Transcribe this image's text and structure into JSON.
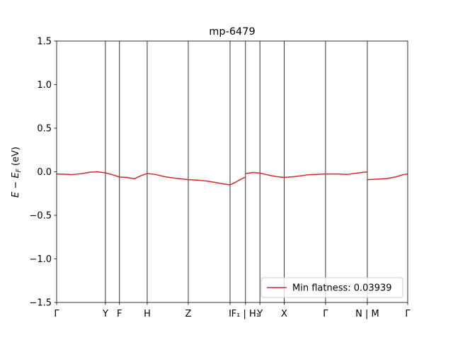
{
  "chart_data": {
    "type": "line",
    "title": "mp-6479",
    "ylabel": "E − E_F (eV)",
    "ylabel_main": "E − E",
    "ylabel_sub": "F",
    "ylabel_unit": " (eV)",
    "xlabel": "",
    "xlim": [
      0,
      1
    ],
    "ylim": [
      -1.5,
      1.5
    ],
    "yticks": [
      {
        "value": -1.5,
        "label": "−1.5"
      },
      {
        "value": -1.0,
        "label": "−1.0"
      },
      {
        "value": -0.5,
        "label": "−0.5"
      },
      {
        "value": 0.0,
        "label": "0.0"
      },
      {
        "value": 0.5,
        "label": "0.5"
      },
      {
        "value": 1.0,
        "label": "1.0"
      },
      {
        "value": 1.5,
        "label": "1.5"
      }
    ],
    "kpoints": [
      {
        "pos": 0.0,
        "label": "Γ"
      },
      {
        "pos": 0.139,
        "label": "Y"
      },
      {
        "pos": 0.179,
        "label": "F"
      },
      {
        "pos": 0.258,
        "label": "H"
      },
      {
        "pos": 0.375,
        "label": "Z"
      },
      {
        "pos": 0.494,
        "label": "I"
      },
      {
        "pos": 0.538,
        "label": "F₁ | H₁"
      },
      {
        "pos": 0.579,
        "label": "Y"
      },
      {
        "pos": 0.648,
        "label": "X"
      },
      {
        "pos": 0.766,
        "label": "Γ"
      },
      {
        "pos": 0.885,
        "label": "N | M"
      },
      {
        "pos": 1.0,
        "label": "Γ"
      }
    ],
    "grid": false,
    "legend_position": "lower-right",
    "series": [
      {
        "name": "Min flatness: 0.03939",
        "color": "#d62728",
        "segments": [
          {
            "x": [
              0.0,
              0.02,
              0.045,
              0.07,
              0.095,
              0.115,
              0.139,
              0.16,
              0.179,
              0.2,
              0.222,
              0.24,
              0.258,
              0.28,
              0.31,
              0.34,
              0.375,
              0.4,
              0.43,
              0.46,
              0.48,
              0.494,
              0.51,
              0.525,
              0.538
            ],
            "y": [
              -0.025,
              -0.028,
              -0.032,
              -0.022,
              -0.005,
              0.0,
              -0.012,
              -0.035,
              -0.06,
              -0.065,
              -0.08,
              -0.045,
              -0.02,
              -0.03,
              -0.058,
              -0.075,
              -0.09,
              -0.095,
              -0.108,
              -0.128,
              -0.142,
              -0.15,
              -0.12,
              -0.085,
              -0.06
            ]
          },
          {
            "x": [
              0.538,
              0.56,
              0.579,
              0.6,
              0.625,
              0.648,
              0.68,
              0.715,
              0.766,
              0.8,
              0.83,
              0.86,
              0.885
            ],
            "y": [
              -0.02,
              -0.008,
              -0.015,
              -0.035,
              -0.055,
              -0.065,
              -0.055,
              -0.035,
              -0.025,
              -0.025,
              -0.03,
              -0.012,
              -0.002
            ]
          },
          {
            "x": [
              0.885,
              0.91,
              0.94,
              0.965,
              0.985,
              1.0
            ],
            "y": [
              -0.09,
              -0.085,
              -0.078,
              -0.06,
              -0.035,
              -0.025
            ]
          }
        ]
      }
    ]
  }
}
